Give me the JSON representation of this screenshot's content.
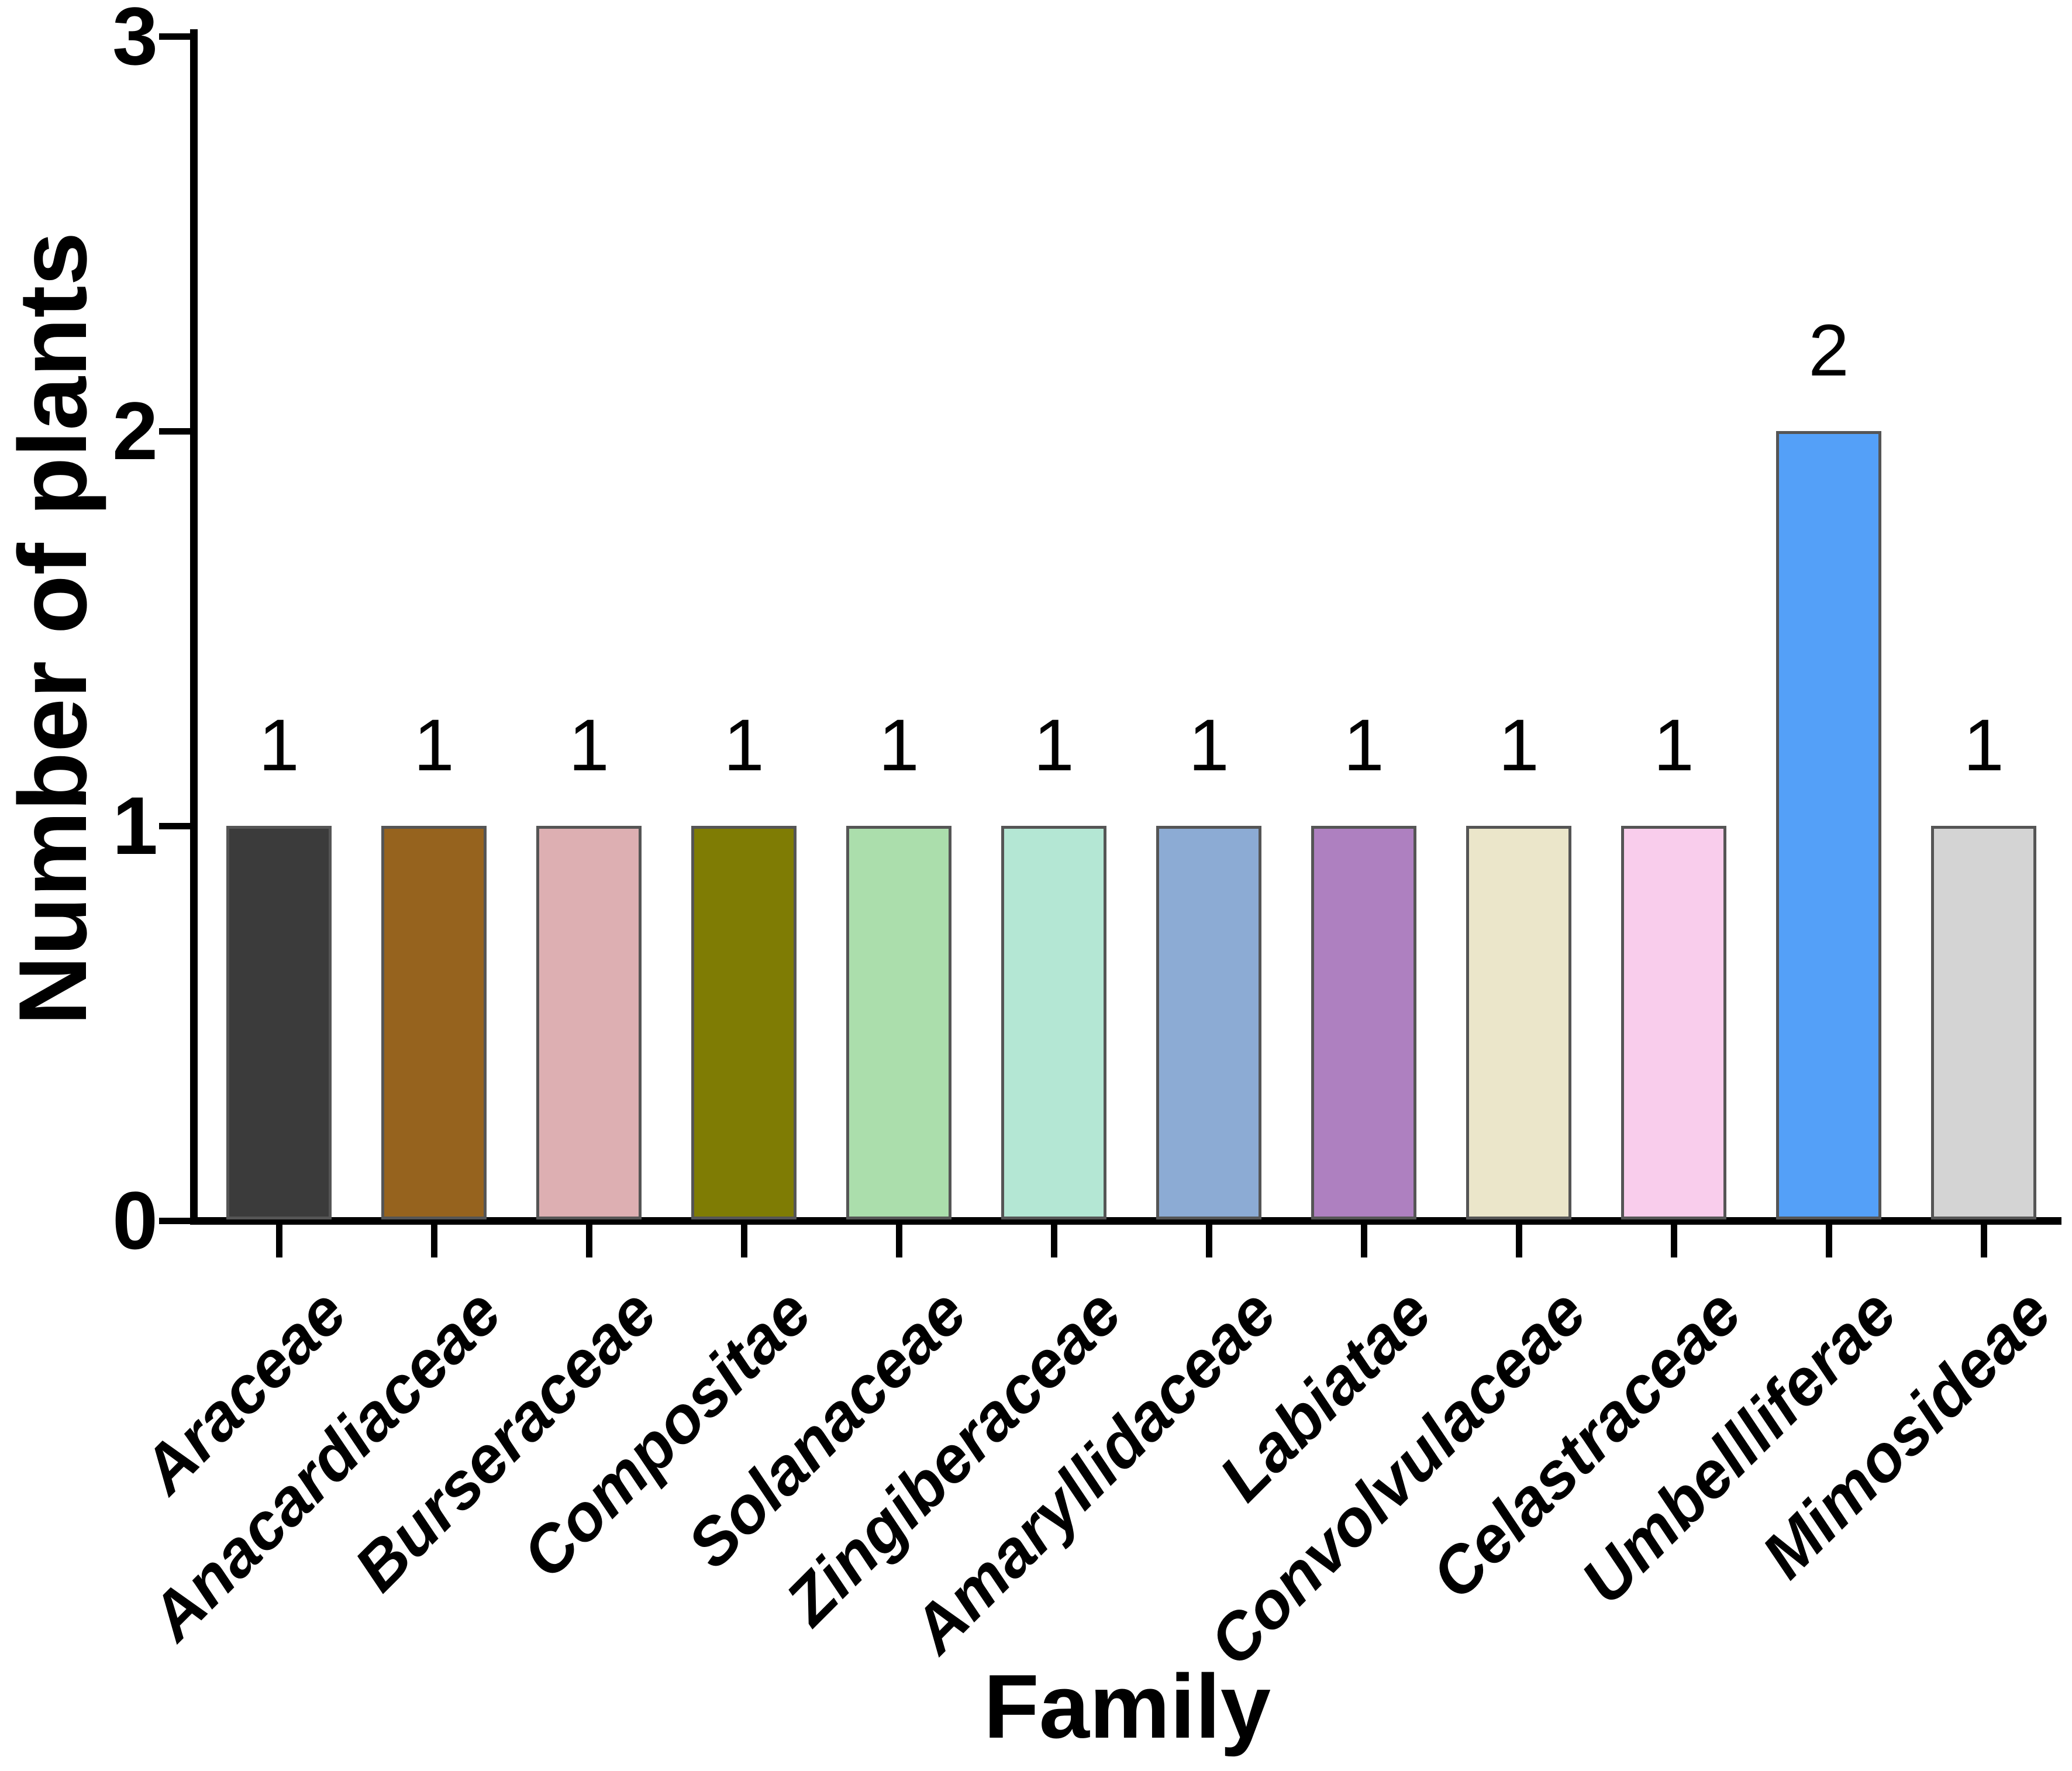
{
  "chart_data": {
    "type": "bar",
    "title": "",
    "xlabel": "Family",
    "ylabel": "Number of plants",
    "categories": [
      "Araceae",
      "Anacardiaceae",
      "Burseraceae",
      "Compositae",
      "Solanaceae",
      "Zingiberaceae",
      "Amaryllidaceae",
      "Labiatae",
      "Convolvulaceae",
      "Celastraceae",
      "Umbellliferae",
      "Mimosideae"
    ],
    "values": [
      1,
      1,
      1,
      1,
      1,
      1,
      1,
      1,
      1,
      1,
      2,
      1
    ],
    "value_labels": [
      "1",
      "1",
      "1",
      "1",
      "1",
      "1",
      "1",
      "1",
      "1",
      "1",
      "2",
      "1"
    ],
    "bar_colors": [
      "#3b3b3b",
      "#96631e",
      "#ddafb2",
      "#7f7c04",
      "#abdeac",
      "#b4e7d4",
      "#8cabd4",
      "#ae80c0",
      "#ebe6ca",
      "#f9cdec",
      "#54a0f8",
      "#d4d4d4"
    ],
    "bar_border_color": "#555555",
    "axis_color": "#000000",
    "ylim": [
      0,
      3
    ],
    "yticks": [
      "0",
      "1",
      "2",
      "3"
    ],
    "grid": false,
    "legend": "none"
  }
}
